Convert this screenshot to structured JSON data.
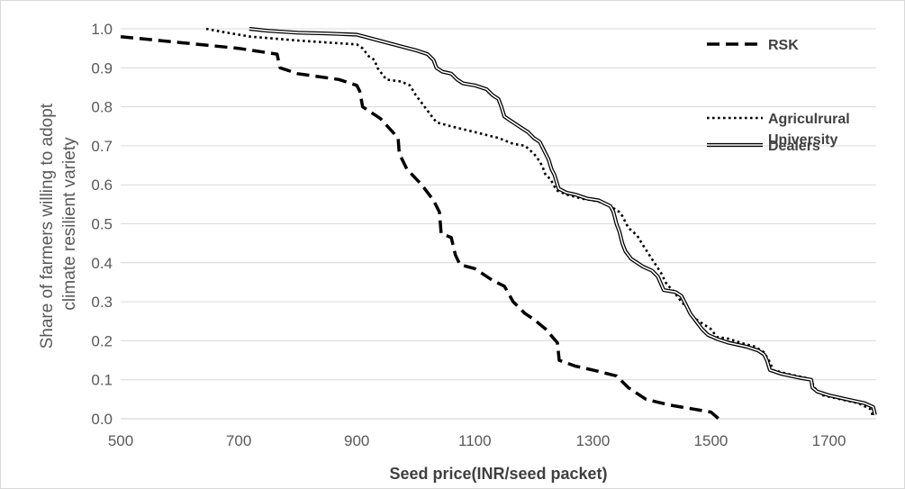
{
  "chart_data": {
    "type": "line",
    "title": "",
    "xlabel": "Seed price(INR/seed packet)",
    "ylabel_lines": [
      "Share of farmers willing to adopt",
      "climate resilient variety"
    ],
    "xlim": [
      500,
      1780
    ],
    "ylim": [
      0,
      1
    ],
    "x_ticks": [
      500,
      700,
      900,
      1100,
      1300,
      1500,
      1700
    ],
    "y_ticks": [
      "0.0",
      "0.1",
      "0.2",
      "0.3",
      "0.4",
      "0.5",
      "0.6",
      "0.7",
      "0.8",
      "0.9",
      "1.0"
    ],
    "grid": "horizontal",
    "legend_position": "top-right",
    "colors": {
      "series": "#000000",
      "grid": "#d9d9d9",
      "tick_text": "#595959",
      "title_text": "#404040"
    },
    "series": [
      {
        "name": "RSK",
        "style": "dashed",
        "legend_lines": [
          "RSK"
        ],
        "points": [
          [
            500,
            0.98
          ],
          [
            600,
            0.965
          ],
          [
            700,
            0.95
          ],
          [
            765,
            0.935
          ],
          [
            770,
            0.9
          ],
          [
            800,
            0.885
          ],
          [
            870,
            0.87
          ],
          [
            900,
            0.855
          ],
          [
            905,
            0.84
          ],
          [
            910,
            0.8
          ],
          [
            940,
            0.77
          ],
          [
            970,
            0.72
          ],
          [
            972,
            0.68
          ],
          [
            985,
            0.64
          ],
          [
            1010,
            0.6
          ],
          [
            1030,
            0.56
          ],
          [
            1040,
            0.53
          ],
          [
            1043,
            0.475
          ],
          [
            1060,
            0.465
          ],
          [
            1067,
            0.42
          ],
          [
            1075,
            0.395
          ],
          [
            1100,
            0.385
          ],
          [
            1130,
            0.355
          ],
          [
            1150,
            0.34
          ],
          [
            1165,
            0.3
          ],
          [
            1185,
            0.27
          ],
          [
            1200,
            0.255
          ],
          [
            1220,
            0.23
          ],
          [
            1240,
            0.195
          ],
          [
            1243,
            0.15
          ],
          [
            1270,
            0.135
          ],
          [
            1300,
            0.125
          ],
          [
            1340,
            0.11
          ],
          [
            1360,
            0.08
          ],
          [
            1390,
            0.05
          ],
          [
            1430,
            0.035
          ],
          [
            1470,
            0.025
          ],
          [
            1500,
            0.017
          ],
          [
            1513,
            0.0
          ]
        ]
      },
      {
        "name": "Agriculrural University",
        "style": "dotted",
        "legend_lines": [
          "Agriculrural",
          "University"
        ],
        "points": [
          [
            645,
            1.0
          ],
          [
            680,
            0.99
          ],
          [
            720,
            0.98
          ],
          [
            760,
            0.975
          ],
          [
            800,
            0.97
          ],
          [
            850,
            0.965
          ],
          [
            900,
            0.96
          ],
          [
            910,
            0.95
          ],
          [
            920,
            0.93
          ],
          [
            930,
            0.92
          ],
          [
            935,
            0.9
          ],
          [
            950,
            0.87
          ],
          [
            975,
            0.865
          ],
          [
            990,
            0.855
          ],
          [
            1000,
            0.83
          ],
          [
            1010,
            0.81
          ],
          [
            1025,
            0.78
          ],
          [
            1035,
            0.76
          ],
          [
            1060,
            0.75
          ],
          [
            1100,
            0.735
          ],
          [
            1140,
            0.72
          ],
          [
            1165,
            0.705
          ],
          [
            1185,
            0.7
          ],
          [
            1200,
            0.68
          ],
          [
            1210,
            0.66
          ],
          [
            1215,
            0.645
          ],
          [
            1220,
            0.625
          ],
          [
            1228,
            0.615
          ],
          [
            1235,
            0.595
          ],
          [
            1240,
            0.585
          ],
          [
            1255,
            0.575
          ],
          [
            1280,
            0.565
          ],
          [
            1300,
            0.56
          ],
          [
            1315,
            0.555
          ],
          [
            1330,
            0.545
          ],
          [
            1345,
            0.53
          ],
          [
            1350,
            0.52
          ],
          [
            1360,
            0.49
          ],
          [
            1375,
            0.47
          ],
          [
            1385,
            0.445
          ],
          [
            1400,
            0.41
          ],
          [
            1415,
            0.375
          ],
          [
            1425,
            0.345
          ],
          [
            1435,
            0.33
          ],
          [
            1450,
            0.3
          ],
          [
            1460,
            0.285
          ],
          [
            1470,
            0.26
          ],
          [
            1485,
            0.245
          ],
          [
            1500,
            0.23
          ],
          [
            1510,
            0.21
          ],
          [
            1530,
            0.205
          ],
          [
            1550,
            0.195
          ],
          [
            1575,
            0.185
          ],
          [
            1590,
            0.17
          ],
          [
            1600,
            0.145
          ],
          [
            1605,
            0.125
          ],
          [
            1630,
            0.115
          ],
          [
            1660,
            0.105
          ],
          [
            1670,
            0.1
          ],
          [
            1675,
            0.08
          ],
          [
            1690,
            0.06
          ],
          [
            1720,
            0.05
          ],
          [
            1750,
            0.04
          ],
          [
            1770,
            0.025
          ],
          [
            1775,
            0.005
          ]
        ]
      },
      {
        "name": "Dealers",
        "style": "double",
        "legend_lines": [
          "Dealers"
        ],
        "points": [
          [
            718,
            1.0
          ],
          [
            750,
            0.995
          ],
          [
            800,
            0.99
          ],
          [
            850,
            0.988
          ],
          [
            900,
            0.985
          ],
          [
            925,
            0.975
          ],
          [
            950,
            0.965
          ],
          [
            975,
            0.955
          ],
          [
            1000,
            0.945
          ],
          [
            1020,
            0.935
          ],
          [
            1030,
            0.92
          ],
          [
            1035,
            0.9
          ],
          [
            1045,
            0.89
          ],
          [
            1060,
            0.885
          ],
          [
            1070,
            0.87
          ],
          [
            1080,
            0.86
          ],
          [
            1100,
            0.855
          ],
          [
            1120,
            0.845
          ],
          [
            1130,
            0.83
          ],
          [
            1140,
            0.82
          ],
          [
            1145,
            0.8
          ],
          [
            1150,
            0.775
          ],
          [
            1160,
            0.765
          ],
          [
            1175,
            0.75
          ],
          [
            1190,
            0.735
          ],
          [
            1200,
            0.72
          ],
          [
            1210,
            0.71
          ],
          [
            1220,
            0.68
          ],
          [
            1225,
            0.665
          ],
          [
            1230,
            0.64
          ],
          [
            1235,
            0.625
          ],
          [
            1238,
            0.61
          ],
          [
            1242,
            0.59
          ],
          [
            1255,
            0.58
          ],
          [
            1270,
            0.575
          ],
          [
            1290,
            0.565
          ],
          [
            1310,
            0.56
          ],
          [
            1330,
            0.545
          ],
          [
            1335,
            0.53
          ],
          [
            1340,
            0.5
          ],
          [
            1345,
            0.48
          ],
          [
            1350,
            0.45
          ],
          [
            1355,
            0.43
          ],
          [
            1365,
            0.41
          ],
          [
            1375,
            0.4
          ],
          [
            1385,
            0.39
          ],
          [
            1400,
            0.38
          ],
          [
            1410,
            0.365
          ],
          [
            1420,
            0.33
          ],
          [
            1440,
            0.325
          ],
          [
            1450,
            0.315
          ],
          [
            1455,
            0.3
          ],
          [
            1460,
            0.285
          ],
          [
            1465,
            0.27
          ],
          [
            1475,
            0.25
          ],
          [
            1485,
            0.23
          ],
          [
            1495,
            0.215
          ],
          [
            1510,
            0.205
          ],
          [
            1530,
            0.195
          ],
          [
            1560,
            0.185
          ],
          [
            1580,
            0.175
          ],
          [
            1590,
            0.165
          ],
          [
            1595,
            0.15
          ],
          [
            1600,
            0.125
          ],
          [
            1620,
            0.115
          ],
          [
            1650,
            0.105
          ],
          [
            1670,
            0.1
          ],
          [
            1672,
            0.08
          ],
          [
            1680,
            0.07
          ],
          [
            1700,
            0.06
          ],
          [
            1730,
            0.05
          ],
          [
            1760,
            0.04
          ],
          [
            1775,
            0.03
          ],
          [
            1778,
            0.01
          ]
        ]
      }
    ]
  }
}
